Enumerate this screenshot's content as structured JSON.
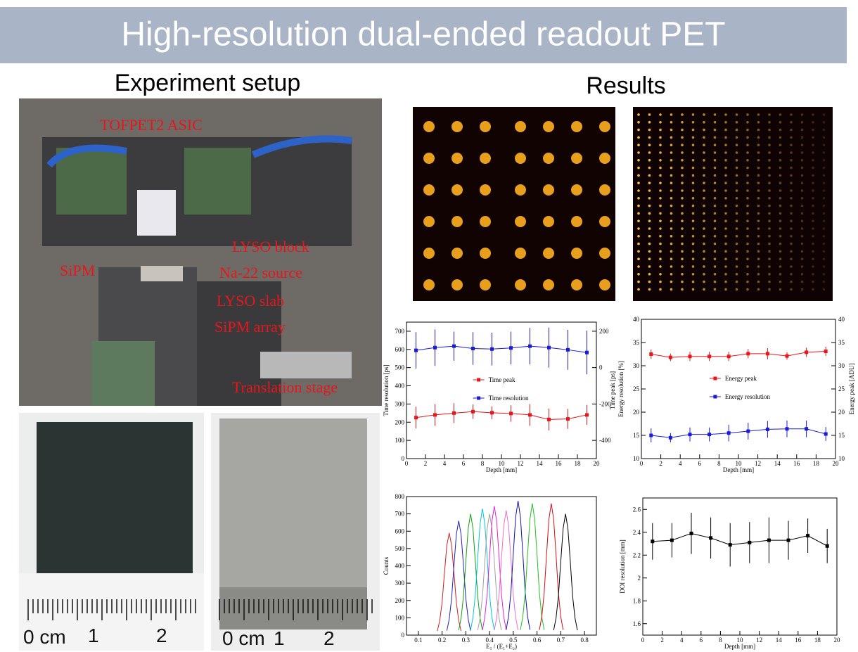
{
  "header": {
    "title": "High-resolution dual-ended readout PET"
  },
  "sections": {
    "setup": "Experiment setup",
    "results": "Results"
  },
  "photo_labels": [
    "TOFPET2 ASIC",
    "LYSO block",
    "SiPM",
    "Na-22 source",
    "LYSO slab",
    "SiPM array",
    "Translation stage"
  ],
  "rulers": [
    [
      "0 cm",
      "1",
      "2"
    ],
    [
      "0 cm",
      "1",
      "2"
    ]
  ],
  "chart_data": [
    {
      "type": "errorbar",
      "xlabel": "Depth [mm]",
      "ylabel": "Time resolution [ps]",
      "y2label": "Time peak [ps]",
      "x": [
        1,
        3,
        5,
        7,
        9,
        11,
        13,
        15,
        17,
        19
      ],
      "xlim": [
        0,
        20
      ],
      "xticks": [
        0,
        2,
        4,
        6,
        8,
        10,
        12,
        14,
        16,
        18,
        20
      ],
      "ylim": [
        0,
        750
      ],
      "yticks": [
        0,
        100,
        200,
        300,
        400,
        500,
        600,
        700
      ],
      "y2lim": [
        -500,
        250
      ],
      "y2ticks": [
        -400,
        -200,
        0,
        200
      ],
      "legend": "center",
      "series": [
        {
          "name": "Time peak",
          "color": "#e8161b",
          "axis": "y2",
          "values": [
            -275,
            -260,
            -250,
            -242,
            -248,
            -252,
            -260,
            -285,
            -282,
            -260
          ],
          "errors": [
            60,
            60,
            55,
            40,
            35,
            45,
            60,
            60,
            55,
            55
          ]
        },
        {
          "name": "Time resolution",
          "color": "#1a1adb",
          "values": [
            595,
            610,
            618,
            605,
            602,
            608,
            618,
            610,
            598,
            583
          ],
          "errors": [
            100,
            100,
            80,
            90,
            90,
            90,
            100,
            110,
            110,
            120
          ]
        }
      ]
    },
    {
      "type": "errorbar",
      "xlabel": "Depth [mm]",
      "ylabel": "Energy resolution [%]",
      "y2label": "Energy peak [ADU]",
      "x": [
        1,
        3,
        5,
        7,
        9,
        11,
        13,
        15,
        17,
        19
      ],
      "xlim": [
        0,
        20
      ],
      "xticks": [
        0,
        2,
        4,
        6,
        8,
        10,
        12,
        14,
        16,
        18,
        20
      ],
      "ylim": [
        10,
        40
      ],
      "yticks": [
        10,
        15,
        20,
        25,
        30,
        35,
        40
      ],
      "y2lim": [
        10,
        40
      ],
      "y2ticks": [
        10,
        15,
        20,
        25,
        30,
        35,
        40
      ],
      "legend": "center",
      "series": [
        {
          "name": "Energy peak",
          "color": "#e8161b",
          "axis": "y2",
          "values": [
            32.5,
            31.8,
            32,
            32,
            32,
            32.6,
            32.6,
            32.1,
            32.9,
            33.1
          ],
          "errors": [
            1,
            0.8,
            1,
            1,
            1,
            1,
            1.2,
            0.8,
            1,
            1
          ]
        },
        {
          "name": "Energy resolution",
          "color": "#1a1adb",
          "values": [
            15,
            14.5,
            15.2,
            15.2,
            15.5,
            15.9,
            16.3,
            16.4,
            16.4,
            15.3
          ],
          "errors": [
            1.5,
            1,
            1.5,
            1.5,
            1.8,
            1.8,
            1.8,
            1.8,
            1.8,
            1.5
          ]
        }
      ]
    },
    {
      "type": "line",
      "xlabel": "E₁ / (E₁+E₂)",
      "ylabel": "Counts",
      "xlim": [
        0.05,
        0.85
      ],
      "xticks": [
        0.1,
        0.2,
        0.3,
        0.4,
        0.5,
        0.6,
        0.7,
        0.8
      ],
      "ylim": [
        0,
        800
      ],
      "yticks": [
        0,
        100,
        200,
        300,
        400,
        500,
        600,
        700,
        800
      ],
      "series": [
        {
          "color": "#d02020",
          "x": [
            0.18,
            0.19,
            0.2,
            0.21,
            0.22,
            0.23,
            0.24,
            0.25,
            0.26,
            0.27,
            0.28
          ],
          "values": [
            24,
            83,
            189,
            360,
            519,
            590,
            519,
            360,
            189,
            83,
            24
          ]
        },
        {
          "color": "#2020c0",
          "x": [
            0.22,
            0.23,
            0.24,
            0.25,
            0.26,
            0.27,
            0.28,
            0.29,
            0.3,
            0.31,
            0.32
          ],
          "values": [
            26,
            92,
            211,
            403,
            581,
            660,
            581,
            403,
            211,
            92,
            26
          ]
        },
        {
          "color": "#10a010",
          "x": [
            0.27,
            0.28,
            0.29,
            0.3,
            0.31,
            0.32,
            0.33,
            0.34,
            0.35,
            0.36,
            0.37
          ],
          "values": [
            28,
            98,
            224,
            427,
            616,
            700,
            616,
            427,
            224,
            98,
            28
          ]
        },
        {
          "color": "#00c8d8",
          "x": [
            0.32,
            0.33,
            0.34,
            0.35,
            0.36,
            0.37,
            0.38,
            0.39,
            0.4,
            0.41,
            0.42
          ],
          "values": [
            29,
            102,
            234,
            445,
            642,
            730,
            642,
            445,
            234,
            102,
            29
          ]
        },
        {
          "color": "#a0a0a0",
          "x": [
            0.35,
            0.36,
            0.37,
            0.38,
            0.39,
            0.4,
            0.41,
            0.42,
            0.43,
            0.44,
            0.45
          ],
          "values": [
            28,
            98,
            224,
            427,
            616,
            700,
            616,
            427,
            224,
            98,
            28
          ]
        },
        {
          "color": "#e020e0",
          "x": [
            0.37,
            0.38,
            0.39,
            0.4,
            0.41,
            0.42,
            0.43,
            0.44,
            0.45,
            0.46,
            0.47
          ],
          "values": [
            30,
            104,
            238,
            454,
            656,
            745,
            656,
            454,
            238,
            104,
            30
          ]
        },
        {
          "color": "#f070c0",
          "x": [
            0.42,
            0.43,
            0.44,
            0.45,
            0.46,
            0.47,
            0.48,
            0.49,
            0.5,
            0.51,
            0.52
          ],
          "values": [
            29,
            101,
            230,
            439,
            634,
            720,
            634,
            439,
            230,
            101,
            29
          ]
        },
        {
          "color": "#1010b0",
          "x": [
            0.47,
            0.48,
            0.49,
            0.5,
            0.51,
            0.52,
            0.53,
            0.54,
            0.55,
            0.56,
            0.57
          ],
          "values": [
            31,
            109,
            248,
            473,
            682,
            775,
            682,
            473,
            248,
            109,
            31
          ]
        },
        {
          "color": "#20c020",
          "x": [
            0.53,
            0.54,
            0.55,
            0.56,
            0.57,
            0.58,
            0.59,
            0.6,
            0.61,
            0.62,
            0.63
          ],
          "values": [
            30,
            106,
            243,
            464,
            669,
            760,
            669,
            464,
            243,
            106,
            30
          ]
        },
        {
          "color": "#d01010",
          "x": [
            0.61,
            0.62,
            0.63,
            0.64,
            0.65,
            0.66,
            0.67,
            0.68,
            0.69,
            0.7,
            0.71
          ],
          "values": [
            30,
            106,
            243,
            464,
            669,
            760,
            669,
            464,
            243,
            106,
            30
          ]
        },
        {
          "color": "#000000",
          "x": [
            0.67,
            0.68,
            0.69,
            0.7,
            0.71,
            0.72,
            0.73,
            0.74,
            0.75,
            0.76,
            0.77
          ],
          "values": [
            28,
            98,
            224,
            427,
            616,
            700,
            616,
            427,
            224,
            98,
            28
          ]
        }
      ]
    },
    {
      "type": "errorbar",
      "xlabel": "Depth [mm]",
      "ylabel": "DOI resolution [mm]",
      "x": [
        1,
        3,
        5,
        7,
        9,
        11,
        13,
        15,
        17,
        19
      ],
      "xlim": [
        0,
        20
      ],
      "xticks": [
        0,
        2,
        4,
        6,
        8,
        10,
        12,
        14,
        16,
        18,
        20
      ],
      "ylim": [
        1.5,
        2.7
      ],
      "yticks": [
        1.6,
        1.8,
        2,
        2.2,
        2.4,
        2.6
      ],
      "series": [
        {
          "color": "#000000",
          "values": [
            2.32,
            2.33,
            2.39,
            2.35,
            2.29,
            2.31,
            2.33,
            2.33,
            2.37,
            2.28
          ],
          "errors": [
            0.16,
            0.15,
            0.18,
            0.18,
            0.19,
            0.18,
            0.2,
            0.17,
            0.15,
            0.15
          ]
        }
      ]
    }
  ]
}
